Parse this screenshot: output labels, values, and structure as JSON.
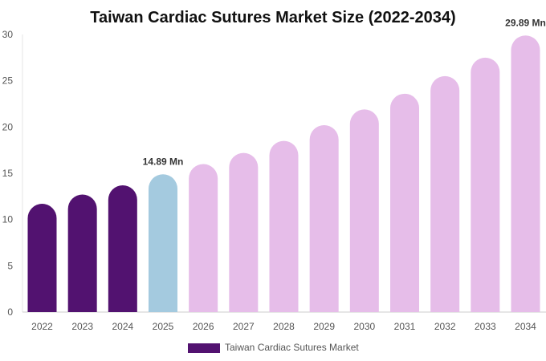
{
  "chart_data": {
    "type": "bar",
    "title": "Taiwan Cardiac Sutures Market Size (2022-2034)",
    "categories": [
      "2022",
      "2023",
      "2024",
      "2025",
      "2026",
      "2027",
      "2028",
      "2029",
      "2030",
      "2031",
      "2032",
      "2033",
      "2034"
    ],
    "series": [
      {
        "name": "Taiwan Cardiac Sutures Market",
        "values": [
          11.7,
          12.7,
          13.7,
          14.89,
          16.0,
          17.2,
          18.5,
          20.2,
          21.9,
          23.6,
          25.5,
          27.5,
          29.89
        ]
      }
    ],
    "ylim": [
      0,
      30
    ],
    "yticks": [
      0,
      5,
      10,
      15,
      20,
      25,
      30
    ],
    "grid": false,
    "legend_position": "bottom",
    "data_labels": [
      {
        "index": 3,
        "text": "14.89 Mn"
      },
      {
        "index": 12,
        "text": "29.89 Mn"
      }
    ],
    "colors": {
      "historical": "#521270",
      "base_year": "#a4cadf",
      "forecast": "#e6bde9",
      "legend": "#521270"
    },
    "period_by_index": [
      "historical",
      "historical",
      "historical",
      "base_year",
      "forecast",
      "forecast",
      "forecast",
      "forecast",
      "forecast",
      "forecast",
      "forecast",
      "forecast",
      "forecast"
    ]
  }
}
